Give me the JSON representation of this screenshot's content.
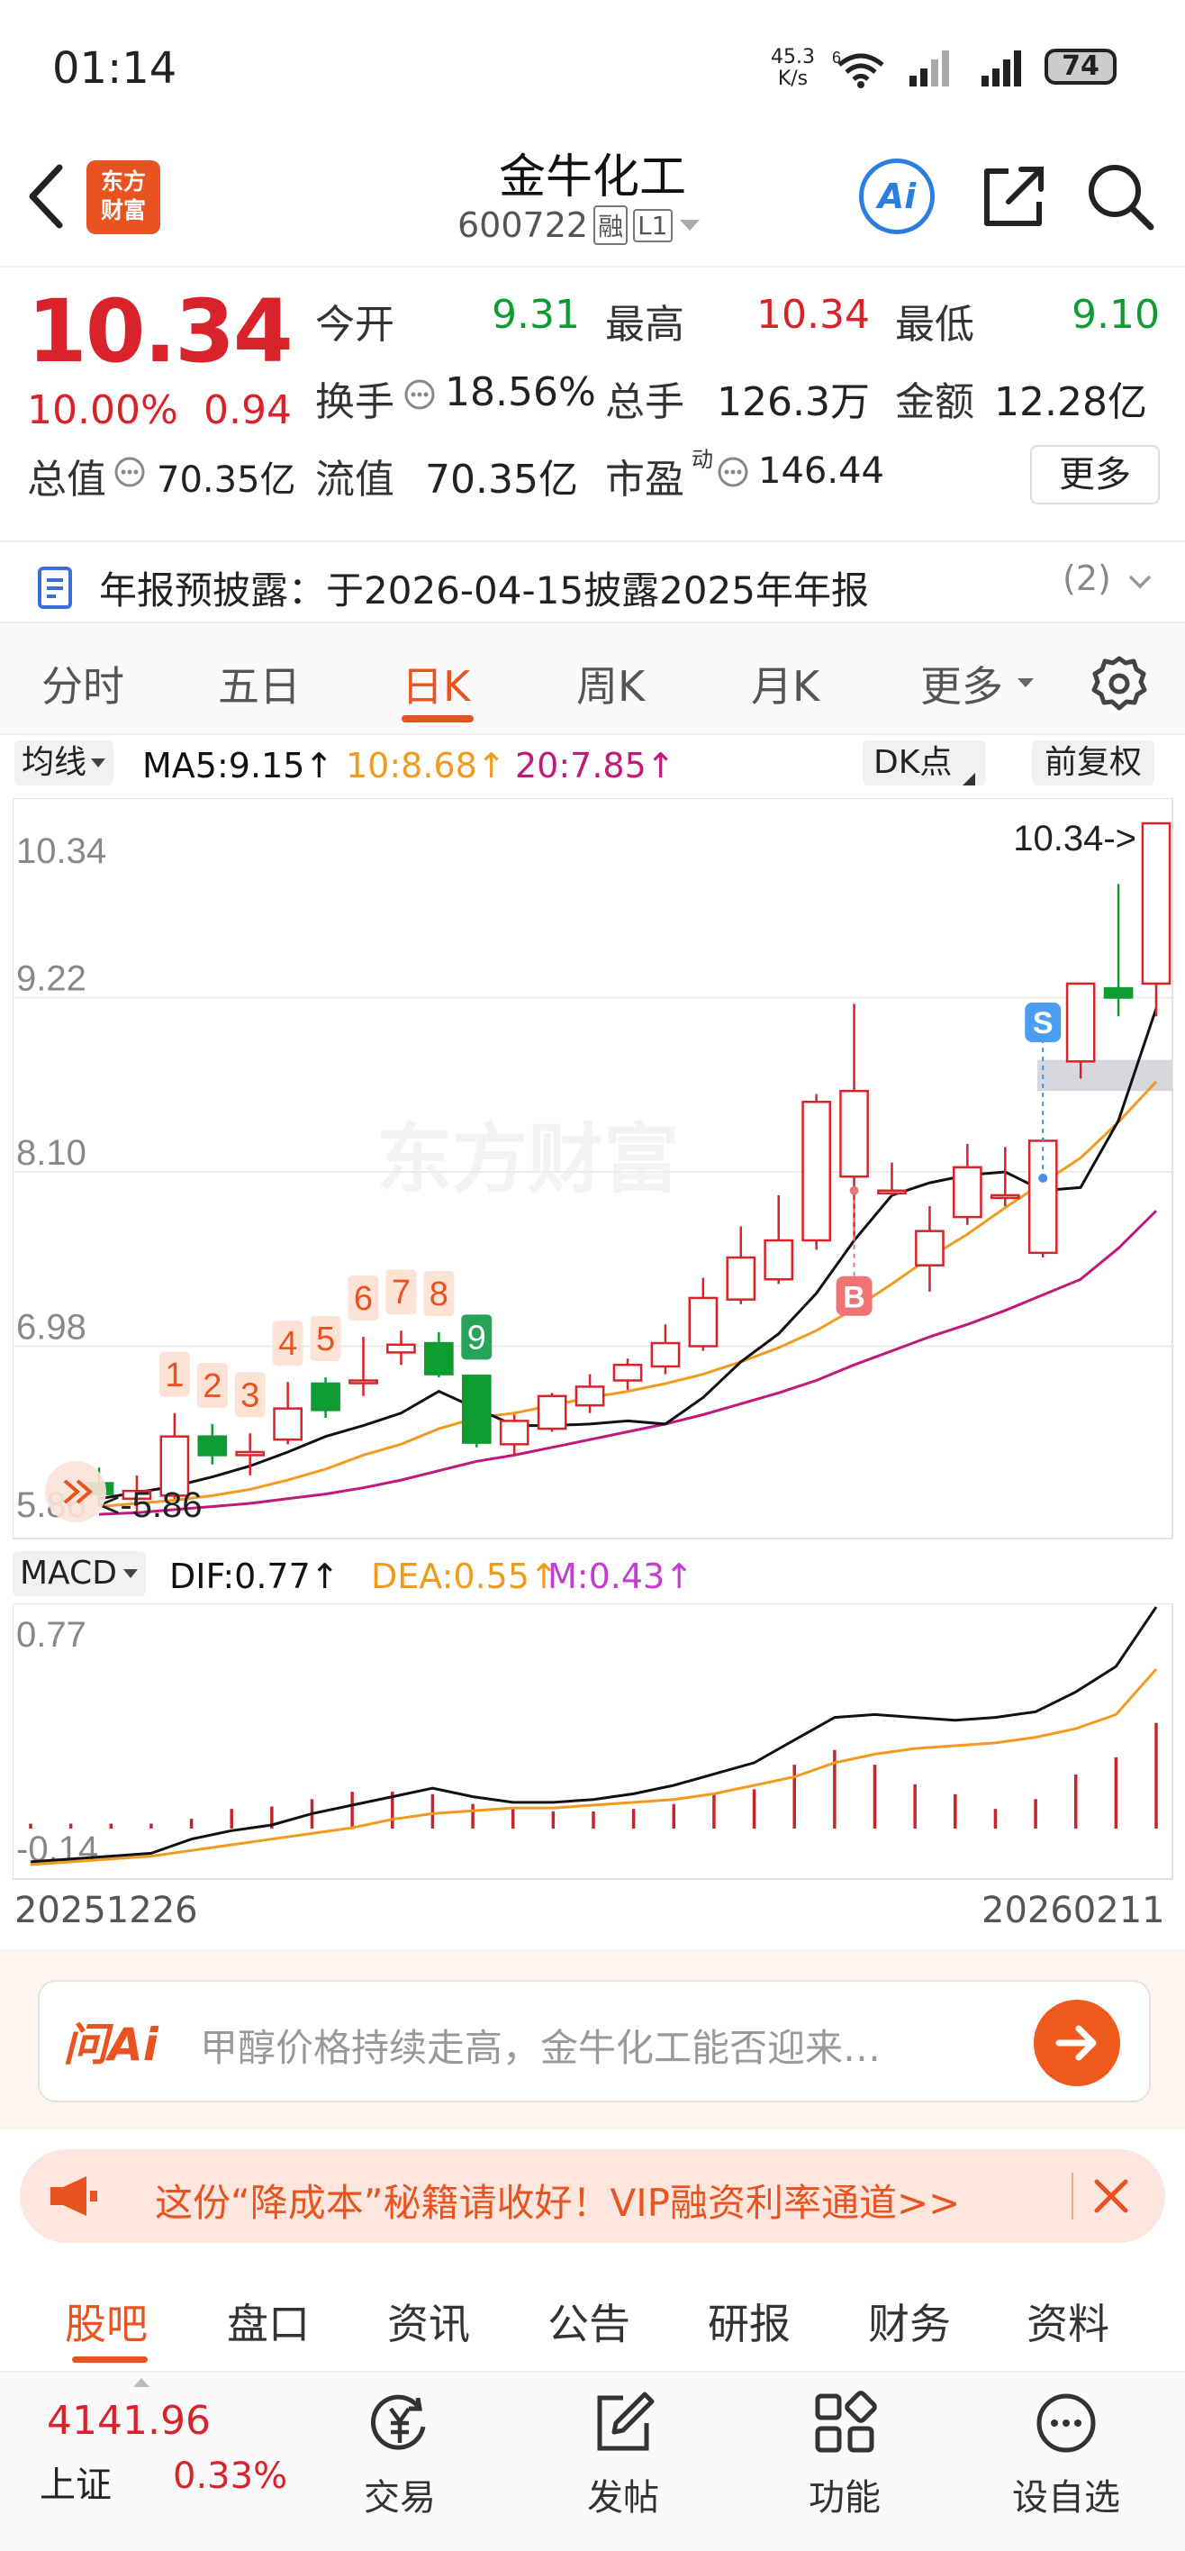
{
  "status_bar": {
    "time": "01:14",
    "net_speed_top": "45.3",
    "net_speed_bottom": "K/s",
    "wifi_label": "6",
    "battery": "74"
  },
  "header": {
    "stock_name": "金牛化工",
    "stock_code": "600722",
    "tag_rong": "融",
    "tag_level": "L1",
    "logo_text_1": "东方",
    "logo_text_2": "财富",
    "ai_label": "Ai"
  },
  "quote": {
    "price": "10.34",
    "change_pct": "10.00%",
    "change_abs": "0.94",
    "open_label": "今开",
    "open": "9.31",
    "high_label": "最高",
    "high": "10.34",
    "low_label": "最低",
    "low": "9.10",
    "turnover_label": "换手",
    "turnover": "18.56%",
    "volume_label": "总手",
    "volume": "126.3万",
    "amount_label": "金额",
    "amount": "12.28亿",
    "mktcap_label": "总值",
    "mktcap": "70.35亿",
    "float_label": "流值",
    "float_cap": "70.35亿",
    "pe_label": "市盈",
    "pe_sup": "动",
    "pe": "146.44",
    "more_button": "更多"
  },
  "notice": {
    "text": "年报预披露：于2026-04-15披露2025年年报",
    "count": "(2)"
  },
  "chart_tabs": [
    "分时",
    "五日",
    "日K",
    "周K",
    "月K",
    "更多"
  ],
  "active_chart_tab": 2,
  "ma_bar": {
    "selector": "均线",
    "ma5": "MA5:9.15↑",
    "ma10": "10:8.68↑",
    "ma20": "20:7.85↑",
    "dk_button": "DK点",
    "fq_button": "前复权"
  },
  "macd_bar": {
    "selector": "MACD",
    "dif": "DIF:0.77↑",
    "dea": "DEA:0.55↑",
    "m": "M:0.43↑"
  },
  "chart_data": {
    "type": "candlestick",
    "y_ticks": [
      "10.34",
      "9.22",
      "8.10",
      "6.98",
      "5.86"
    ],
    "ylim": [
      5.86,
      10.34
    ],
    "max_label": "10.34->",
    "min_label": "<-5.86",
    "x_start": "20251226",
    "x_end": "20260211",
    "watermark": "东方财富",
    "candles": [
      {
        "o": 6.1,
        "c": 6.03,
        "h": 6.2,
        "l": 5.95
      },
      {
        "o": 6.0,
        "c": 6.05,
        "h": 6.15,
        "l": 5.9
      },
      {
        "o": 6.02,
        "c": 6.4,
        "h": 6.55,
        "l": 6.0
      },
      {
        "o": 6.4,
        "c": 6.28,
        "h": 6.48,
        "l": 6.22
      },
      {
        "o": 6.28,
        "c": 6.3,
        "h": 6.42,
        "l": 6.15
      },
      {
        "o": 6.38,
        "c": 6.58,
        "h": 6.75,
        "l": 6.35
      },
      {
        "o": 6.74,
        "c": 6.57,
        "h": 6.78,
        "l": 6.52
      },
      {
        "o": 6.76,
        "c": 6.76,
        "h": 7.04,
        "l": 6.66
      },
      {
        "o": 6.94,
        "c": 6.99,
        "h": 7.08,
        "l": 6.86
      },
      {
        "o": 7.0,
        "c": 6.8,
        "h": 7.07,
        "l": 6.78
      },
      {
        "o": 6.79,
        "c": 6.36,
        "h": 6.79,
        "l": 6.33
      },
      {
        "o": 6.35,
        "c": 6.5,
        "h": 6.54,
        "l": 6.28
      },
      {
        "o": 6.45,
        "c": 6.66,
        "h": 6.68,
        "l": 6.43
      },
      {
        "o": 6.6,
        "c": 6.72,
        "h": 6.8,
        "l": 6.55
      },
      {
        "o": 6.76,
        "c": 6.86,
        "h": 6.9,
        "l": 6.7
      },
      {
        "o": 6.85,
        "c": 7.0,
        "h": 7.12,
        "l": 6.8
      },
      {
        "o": 6.98,
        "c": 7.29,
        "h": 7.42,
        "l": 6.95
      },
      {
        "o": 7.28,
        "c": 7.55,
        "h": 7.75,
        "l": 7.25
      },
      {
        "o": 7.41,
        "c": 7.66,
        "h": 7.95,
        "l": 7.38
      },
      {
        "o": 7.66,
        "c": 8.55,
        "h": 8.6,
        "l": 7.6
      },
      {
        "o": 8.07,
        "c": 8.62,
        "h": 9.18,
        "l": 7.65
      },
      {
        "o": 7.98,
        "c": 7.98,
        "h": 8.16,
        "l": 7.95
      },
      {
        "o": 7.5,
        "c": 7.72,
        "h": 7.88,
        "l": 7.33
      },
      {
        "o": 7.81,
        "c": 8.13,
        "h": 8.28,
        "l": 7.76
      },
      {
        "o": 7.95,
        "c": 7.95,
        "h": 8.26,
        "l": 7.88
      },
      {
        "o": 7.58,
        "c": 8.3,
        "h": 8.32,
        "l": 7.55
      },
      {
        "o": 8.81,
        "c": 9.31,
        "h": 9.31,
        "l": 8.7
      },
      {
        "o": 9.28,
        "c": 9.22,
        "h": 9.95,
        "l": 9.1
      },
      {
        "o": 9.31,
        "c": 10.34,
        "h": 10.34,
        "l": 9.1
      }
    ],
    "ma5": [
      6.0,
      6.04,
      6.08,
      6.14,
      6.21,
      6.3,
      6.4,
      6.47,
      6.55,
      6.69,
      6.58,
      6.47,
      6.47,
      6.48,
      6.5,
      6.48,
      6.65,
      6.88,
      7.06,
      7.32,
      7.66,
      7.95,
      8.03,
      8.08,
      8.1,
      7.98,
      8.0,
      8.43,
      9.15
    ],
    "ma10": [
      5.95,
      5.97,
      5.99,
      6.02,
      6.06,
      6.12,
      6.19,
      6.28,
      6.35,
      6.45,
      6.52,
      6.55,
      6.6,
      6.65,
      6.69,
      6.74,
      6.8,
      6.88,
      6.97,
      7.08,
      7.22,
      7.38,
      7.55,
      7.7,
      7.87,
      8.03,
      8.19,
      8.42,
      8.68
    ],
    "ma20": [
      5.9,
      5.91,
      5.93,
      5.95,
      5.97,
      6.0,
      6.03,
      6.07,
      6.12,
      6.18,
      6.24,
      6.28,
      6.33,
      6.38,
      6.43,
      6.48,
      6.54,
      6.61,
      6.68,
      6.76,
      6.86,
      6.95,
      7.04,
      7.12,
      7.21,
      7.31,
      7.41,
      7.61,
      7.85
    ],
    "td_labels": [
      "1",
      "2",
      "3",
      "4",
      "5",
      "6",
      "7",
      "8",
      "9"
    ],
    "buy_marker": "B",
    "sell_marker": "S",
    "macd": {
      "y_ticks": [
        "0.77",
        "-0.14"
      ],
      "ylim": [
        -0.14,
        0.77
      ],
      "dif": [
        -0.13,
        -0.12,
        -0.11,
        -0.1,
        -0.05,
        -0.02,
        0.0,
        0.04,
        0.07,
        0.1,
        0.13,
        0.1,
        0.08,
        0.08,
        0.09,
        0.11,
        0.14,
        0.18,
        0.22,
        0.3,
        0.38,
        0.39,
        0.38,
        0.37,
        0.38,
        0.4,
        0.47,
        0.56,
        0.77
      ],
      "dea": [
        -0.14,
        -0.13,
        -0.12,
        -0.11,
        -0.09,
        -0.07,
        -0.05,
        -0.03,
        -0.01,
        0.02,
        0.04,
        0.05,
        0.06,
        0.06,
        0.07,
        0.08,
        0.09,
        0.11,
        0.14,
        0.17,
        0.22,
        0.25,
        0.27,
        0.28,
        0.29,
        0.31,
        0.34,
        0.39,
        0.55
      ],
      "m": [
        0.02,
        0.02,
        0.02,
        0.02,
        0.04,
        0.08,
        0.09,
        0.12,
        0.15,
        0.15,
        0.14,
        0.1,
        0.08,
        0.07,
        0.07,
        0.08,
        0.1,
        0.14,
        0.16,
        0.26,
        0.32,
        0.26,
        0.18,
        0.14,
        0.08,
        0.12,
        0.22,
        0.29,
        0.43
      ]
    }
  },
  "ai_box": {
    "brand": "问Ai",
    "question": "甲醇价格持续走高，金牛化工能否迎来…"
  },
  "promo": {
    "text": "这份“降成本”秘籍请收好！VIP融资利率通道>>"
  },
  "bottom_tabs": [
    "股吧",
    "盘口",
    "资讯",
    "公告",
    "研报",
    "财务",
    "资料"
  ],
  "bottom_nav": {
    "index_value": "4141.96",
    "index_name": "上证",
    "index_change": "0.33%",
    "items": [
      "交易",
      "发帖",
      "功能",
      "设自选"
    ]
  },
  "colors": {
    "up": "#d8232a",
    "down": "#0e9b32",
    "accent": "#e8531f",
    "ma5": "#111111",
    "ma10": "#f09a1e",
    "ma20": "#c2187a"
  }
}
